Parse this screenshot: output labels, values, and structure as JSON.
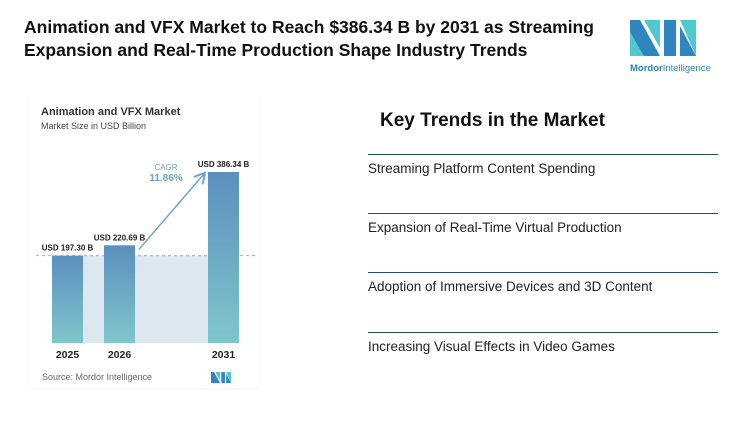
{
  "header": {
    "title": "Animation and VFX Market to Reach $386.34 B by 2031 as Streaming Expansion and Real-Time Production Shape Industry Trends"
  },
  "logo": {
    "brand": "Mordor Intelligence",
    "part1": "Mordor",
    "part2": "Intelligence"
  },
  "chart_data": {
    "type": "bar",
    "title": "Animation and VFX Market",
    "subtitle": "Market Size in USD Billion",
    "categories": [
      "2025",
      "2026",
      "2031"
    ],
    "values": [
      197.3,
      220.69,
      386.34
    ],
    "data_labels": [
      "USD 197.30 B",
      "USD 220.69 B",
      "USD 386.34 B"
    ],
    "annotation": {
      "label": "CAGR",
      "value": "11.86%"
    },
    "source": "Source: Mordor Intelligence",
    "colors": {
      "bar_top": "#5b8fbd",
      "bar_bottom": "#7fc6cc",
      "area": "#dde7ef",
      "arrow": "#6aa3cf"
    }
  },
  "trends": {
    "title": "Key Trends in the Market",
    "items": [
      "Streaming Platform Content Spending",
      "Expansion of Real-Time Virtual Production",
      "Adoption of Immersive Devices and 3D Content",
      "Increasing Visual Effects in Video Games"
    ]
  }
}
